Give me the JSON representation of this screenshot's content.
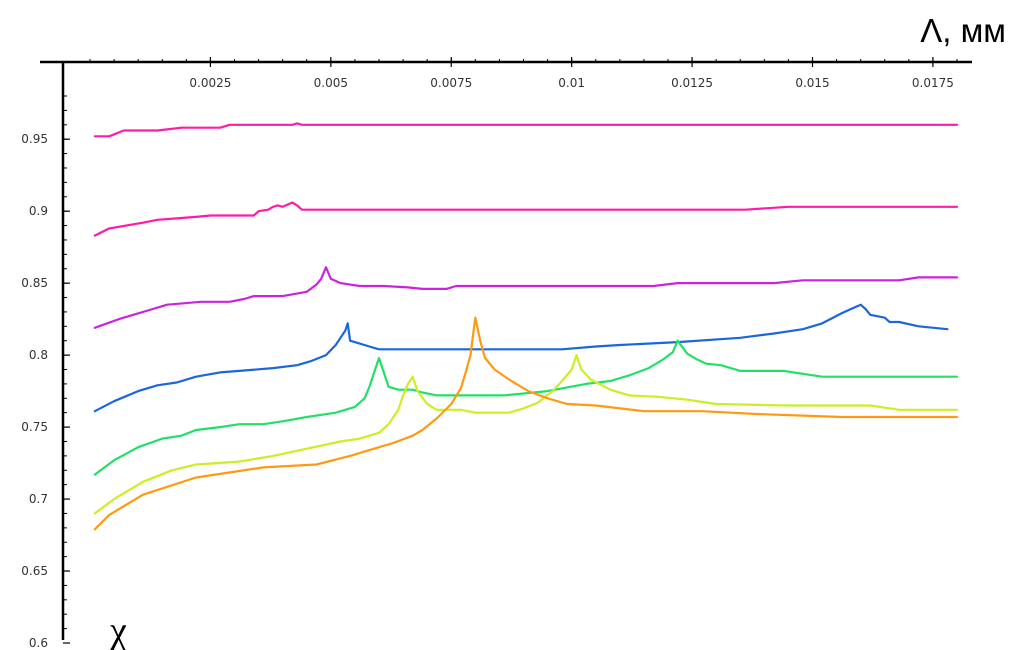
{
  "chart_data": {
    "type": "line",
    "xlabel": "Λ, мм",
    "ylabel": "χ",
    "xlim": [
      0.0,
      0.018
    ],
    "ylim": [
      0.6,
      0.98
    ],
    "grid": false,
    "x_ticks": [
      "0.0025",
      "0.005",
      "0.0075",
      "0.01",
      "0.0125",
      "0.015",
      "0.0175"
    ],
    "y_ticks": [
      "0.95",
      "0.9",
      "0.85",
      "0.8",
      "0.75",
      "0.7",
      "0.65",
      "0.6"
    ],
    "series": [
      {
        "color": "#ff1aa8",
        "points": [
          [
            0.0001,
            0.952
          ],
          [
            0.0004,
            0.952
          ],
          [
            0.0007,
            0.956
          ],
          [
            0.0014,
            0.956
          ],
          [
            0.0019,
            0.958
          ],
          [
            0.0027,
            0.958
          ],
          [
            0.0029,
            0.96
          ],
          [
            0.0042,
            0.96
          ],
          [
            0.0043,
            0.961
          ],
          [
            0.0044,
            0.96
          ],
          [
            0.018,
            0.96
          ]
        ]
      },
      {
        "color": "#ff1aa8",
        "points": [
          [
            0.0001,
            0.883
          ],
          [
            0.0004,
            0.888
          ],
          [
            0.0011,
            0.892
          ],
          [
            0.0014,
            0.894
          ],
          [
            0.0018,
            0.895
          ],
          [
            0.0022,
            0.896
          ],
          [
            0.0025,
            0.897
          ],
          [
            0.0034,
            0.897
          ],
          [
            0.0035,
            0.9
          ],
          [
            0.0037,
            0.901
          ],
          [
            0.0038,
            0.903
          ],
          [
            0.0039,
            0.904
          ],
          [
            0.004,
            0.903
          ],
          [
            0.0042,
            0.906
          ],
          [
            0.0043,
            0.904
          ],
          [
            0.0044,
            0.901
          ],
          [
            0.0047,
            0.901
          ],
          [
            0.0136,
            0.901
          ],
          [
            0.0145,
            0.903
          ],
          [
            0.018,
            0.903
          ]
        ]
      },
      {
        "color": "#cc22dd",
        "points": [
          [
            0.0001,
            0.819
          ],
          [
            0.0006,
            0.825
          ],
          [
            0.0012,
            0.831
          ],
          [
            0.0016,
            0.835
          ],
          [
            0.0023,
            0.837
          ],
          [
            0.0029,
            0.837
          ],
          [
            0.0032,
            0.839
          ],
          [
            0.0034,
            0.841
          ],
          [
            0.004,
            0.841
          ],
          [
            0.0045,
            0.844
          ],
          [
            0.0047,
            0.849
          ],
          [
            0.0048,
            0.853
          ],
          [
            0.0049,
            0.861
          ],
          [
            0.005,
            0.853
          ],
          [
            0.0052,
            0.85
          ],
          [
            0.0054,
            0.849
          ],
          [
            0.0056,
            0.848
          ],
          [
            0.0061,
            0.848
          ],
          [
            0.0066,
            0.847
          ],
          [
            0.0069,
            0.846
          ],
          [
            0.0074,
            0.846
          ],
          [
            0.0076,
            0.848
          ],
          [
            0.0085,
            0.848
          ],
          [
            0.0117,
            0.848
          ],
          [
            0.0122,
            0.85
          ],
          [
            0.0142,
            0.85
          ],
          [
            0.0148,
            0.852
          ],
          [
            0.0168,
            0.852
          ],
          [
            0.0172,
            0.854
          ],
          [
            0.018,
            0.854
          ]
        ]
      },
      {
        "color": "#1a66dd",
        "points": [
          [
            0.0001,
            0.761
          ],
          [
            0.0005,
            0.768
          ],
          [
            0.001,
            0.775
          ],
          [
            0.0014,
            0.779
          ],
          [
            0.0018,
            0.781
          ],
          [
            0.0022,
            0.785
          ],
          [
            0.0027,
            0.788
          ],
          [
            0.0031,
            0.789
          ],
          [
            0.0038,
            0.791
          ],
          [
            0.0043,
            0.793
          ],
          [
            0.0046,
            0.796
          ],
          [
            0.0049,
            0.8
          ],
          [
            0.0051,
            0.807
          ],
          [
            0.0052,
            0.812
          ],
          [
            0.0053,
            0.817
          ],
          [
            0.00535,
            0.822
          ],
          [
            0.0054,
            0.81
          ],
          [
            0.0056,
            0.808
          ],
          [
            0.0058,
            0.806
          ],
          [
            0.006,
            0.804
          ],
          [
            0.0082,
            0.804
          ],
          [
            0.0098,
            0.804
          ],
          [
            0.0105,
            0.806
          ],
          [
            0.011,
            0.807
          ],
          [
            0.0122,
            0.809
          ],
          [
            0.0135,
            0.812
          ],
          [
            0.0142,
            0.815
          ],
          [
            0.0148,
            0.818
          ],
          [
            0.0152,
            0.822
          ],
          [
            0.0156,
            0.829
          ],
          [
            0.0158,
            0.832
          ],
          [
            0.016,
            0.835
          ],
          [
            0.0161,
            0.832
          ],
          [
            0.0162,
            0.828
          ],
          [
            0.0165,
            0.826
          ],
          [
            0.0166,
            0.823
          ],
          [
            0.0168,
            0.823
          ],
          [
            0.0172,
            0.82
          ],
          [
            0.0178,
            0.818
          ]
        ]
      },
      {
        "color": "#22e066",
        "points": [
          [
            0.0001,
            0.717
          ],
          [
            0.0005,
            0.727
          ],
          [
            0.001,
            0.736
          ],
          [
            0.0015,
            0.742
          ],
          [
            0.0019,
            0.744
          ],
          [
            0.0022,
            0.748
          ],
          [
            0.0027,
            0.75
          ],
          [
            0.0031,
            0.752
          ],
          [
            0.0036,
            0.752
          ],
          [
            0.004,
            0.754
          ],
          [
            0.0045,
            0.757
          ],
          [
            0.0051,
            0.76
          ],
          [
            0.0055,
            0.764
          ],
          [
            0.0057,
            0.77
          ],
          [
            0.0058,
            0.778
          ],
          [
            0.006,
            0.798
          ],
          [
            0.0061,
            0.788
          ],
          [
            0.0062,
            0.778
          ],
          [
            0.0064,
            0.776
          ],
          [
            0.0067,
            0.776
          ],
          [
            0.0069,
            0.774
          ],
          [
            0.0072,
            0.772
          ],
          [
            0.0086,
            0.772
          ],
          [
            0.0089,
            0.773
          ],
          [
            0.0095,
            0.775
          ],
          [
            0.0103,
            0.78
          ],
          [
            0.0108,
            0.782
          ],
          [
            0.0112,
            0.786
          ],
          [
            0.0116,
            0.791
          ],
          [
            0.0119,
            0.797
          ],
          [
            0.0121,
            0.802
          ],
          [
            0.0122,
            0.81
          ],
          [
            0.0124,
            0.801
          ],
          [
            0.0126,
            0.797
          ],
          [
            0.0128,
            0.794
          ],
          [
            0.0131,
            0.793
          ],
          [
            0.0135,
            0.789
          ],
          [
            0.0144,
            0.789
          ],
          [
            0.0148,
            0.787
          ],
          [
            0.0152,
            0.785
          ],
          [
            0.018,
            0.785
          ]
        ]
      },
      {
        "color": "#ccee22",
        "points": [
          [
            0.0001,
            0.69
          ],
          [
            0.0005,
            0.7
          ],
          [
            0.0011,
            0.712
          ],
          [
            0.0017,
            0.72
          ],
          [
            0.0022,
            0.724
          ],
          [
            0.0031,
            0.726
          ],
          [
            0.0038,
            0.73
          ],
          [
            0.0045,
            0.735
          ],
          [
            0.0052,
            0.74
          ],
          [
            0.0056,
            0.742
          ],
          [
            0.006,
            0.746
          ],
          [
            0.0062,
            0.752
          ],
          [
            0.0064,
            0.762
          ],
          [
            0.0065,
            0.772
          ],
          [
            0.0066,
            0.78
          ],
          [
            0.0067,
            0.785
          ],
          [
            0.0068,
            0.775
          ],
          [
            0.007,
            0.766
          ],
          [
            0.0072,
            0.762
          ],
          [
            0.0077,
            0.762
          ],
          [
            0.008,
            0.76
          ],
          [
            0.0087,
            0.76
          ],
          [
            0.009,
            0.763
          ],
          [
            0.0093,
            0.767
          ],
          [
            0.0096,
            0.775
          ],
          [
            0.0098,
            0.782
          ],
          [
            0.01,
            0.79
          ],
          [
            0.0101,
            0.8
          ],
          [
            0.0102,
            0.79
          ],
          [
            0.0104,
            0.783
          ],
          [
            0.0108,
            0.776
          ],
          [
            0.0112,
            0.772
          ],
          [
            0.0118,
            0.771
          ],
          [
            0.0124,
            0.769
          ],
          [
            0.013,
            0.766
          ],
          [
            0.0145,
            0.765
          ],
          [
            0.0162,
            0.765
          ],
          [
            0.0168,
            0.762
          ],
          [
            0.018,
            0.762
          ]
        ]
      },
      {
        "color": "#ff9911",
        "points": [
          [
            0.0001,
            0.679
          ],
          [
            0.0004,
            0.689
          ],
          [
            0.0011,
            0.703
          ],
          [
            0.0022,
            0.715
          ],
          [
            0.0036,
            0.722
          ],
          [
            0.0047,
            0.724
          ],
          [
            0.0054,
            0.73
          ],
          [
            0.0058,
            0.734
          ],
          [
            0.0063,
            0.739
          ],
          [
            0.0067,
            0.744
          ],
          [
            0.0069,
            0.748
          ],
          [
            0.0072,
            0.756
          ],
          [
            0.0075,
            0.766
          ],
          [
            0.0077,
            0.777
          ],
          [
            0.0078,
            0.788
          ],
          [
            0.0079,
            0.8
          ],
          [
            0.00795,
            0.813
          ],
          [
            0.008,
            0.826
          ],
          [
            0.0081,
            0.81
          ],
          [
            0.0082,
            0.798
          ],
          [
            0.0084,
            0.79
          ],
          [
            0.0087,
            0.783
          ],
          [
            0.0091,
            0.775
          ],
          [
            0.0095,
            0.77
          ],
          [
            0.0099,
            0.766
          ],
          [
            0.0105,
            0.765
          ],
          [
            0.0115,
            0.761
          ],
          [
            0.0127,
            0.761
          ],
          [
            0.0139,
            0.759
          ],
          [
            0.0148,
            0.758
          ],
          [
            0.0156,
            0.757
          ],
          [
            0.018,
            0.757
          ]
        ]
      }
    ]
  }
}
